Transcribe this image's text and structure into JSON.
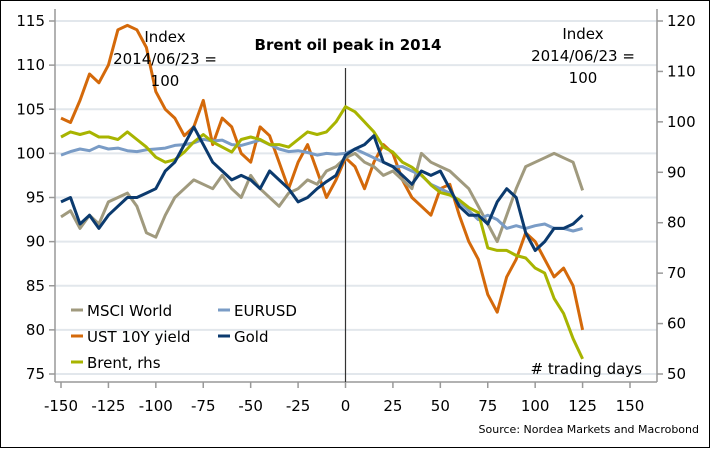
{
  "chart_data": {
    "type": "line",
    "title": "Brent oil peak in 2014",
    "annotation_left": [
      "Index",
      "2014/06/23 =",
      "100"
    ],
    "annotation_right": [
      "Index",
      "2014/06/23 =",
      "100"
    ],
    "xlabel": "# trading days",
    "source": "Source: Nordea Markets and Macrobond",
    "grid": true,
    "x_axis": {
      "range": [
        -155,
        165
      ],
      "ticks": [
        -150,
        -125,
        -100,
        -75,
        -50,
        -25,
        0,
        25,
        50,
        75,
        100,
        125,
        150
      ]
    },
    "y_left": {
      "range": [
        74,
        116
      ],
      "ticks": [
        75,
        80,
        85,
        90,
        95,
        100,
        105,
        110,
        115
      ]
    },
    "y_right": {
      "range": [
        50,
        120
      ],
      "ticks": [
        50,
        60,
        70,
        80,
        90,
        100,
        110,
        120
      ]
    },
    "vline_at": 0,
    "legend_position": "bottom-left",
    "x": [
      -150,
      -145,
      -140,
      -135,
      -130,
      -125,
      -120,
      -115,
      -110,
      -105,
      -100,
      -95,
      -90,
      -85,
      -80,
      -75,
      -70,
      -65,
      -60,
      -55,
      -50,
      -45,
      -40,
      -35,
      -30,
      -25,
      -20,
      -15,
      -10,
      -5,
      0,
      5,
      10,
      15,
      20,
      25,
      30,
      35,
      40,
      45,
      50,
      55,
      60,
      65,
      70,
      75,
      80,
      85,
      90,
      95,
      100,
      105,
      110,
      115,
      120,
      125
    ],
    "series": [
      {
        "name": "MSCI World",
        "axis": "left",
        "color": "#A09A7E",
        "values": [
          92.8,
          93.5,
          91.5,
          93,
          92,
          94.5,
          95,
          95.5,
          94,
          91,
          90.5,
          93,
          95,
          96,
          97,
          96.5,
          96,
          97.5,
          96,
          95,
          97.5,
          96,
          95,
          94,
          95.5,
          96,
          97,
          96.5,
          98,
          98.5,
          99.5,
          100,
          99,
          98.5,
          97.5,
          98,
          97,
          96,
          100,
          99,
          98.5,
          98,
          97,
          96,
          94,
          92,
          90,
          93,
          96,
          98.5,
          99,
          99.5,
          100,
          99.5,
          99,
          95.8
        ]
      },
      {
        "name": "EURUSD",
        "axis": "left",
        "color": "#7A9CC6",
        "values": [
          99.8,
          100.2,
          100.5,
          100.3,
          100.8,
          100.5,
          100.6,
          100.3,
          100.2,
          100.4,
          100.5,
          100.6,
          100.9,
          101,
          101.2,
          101.6,
          101.4,
          101.5,
          101,
          100.9,
          101.2,
          101.5,
          101,
          100.5,
          100.2,
          100.3,
          100.1,
          99.8,
          100,
          99.9,
          100,
          100.5,
          100,
          99.5,
          99,
          98.5,
          98.5,
          98,
          97.5,
          96.5,
          96,
          95.5,
          94.5,
          93.5,
          92.5,
          93,
          92.5,
          91.5,
          91.8,
          91.5,
          91.8,
          92,
          91.5,
          91.5,
          91.2,
          91.5
        ]
      },
      {
        "name": "UST 10Y yield",
        "axis": "left",
        "color": "#D4690A",
        "values": [
          104,
          103.5,
          106,
          109,
          108,
          110,
          114,
          114.5,
          114,
          112,
          107,
          105,
          104,
          102,
          103,
          106,
          101,
          104,
          103,
          100,
          99,
          103,
          102,
          99,
          96,
          99,
          101,
          98,
          95,
          97,
          99.5,
          98.5,
          96,
          99,
          101,
          100,
          97,
          95,
          94,
          93,
          96,
          96.5,
          93,
          90,
          88,
          84,
          82,
          86,
          88,
          91,
          90,
          88,
          86,
          87,
          85,
          80
        ]
      },
      {
        "name": "Gold",
        "axis": "left",
        "color": "#0B3A6E",
        "values": [
          94.5,
          95,
          92,
          93,
          91.5,
          93,
          94,
          95,
          95,
          95.5,
          96,
          98,
          99,
          101,
          103,
          101,
          99,
          98,
          97,
          97.5,
          97,
          96,
          98,
          97,
          96,
          94.5,
          95,
          96,
          96.8,
          97.5,
          99.8,
          100.5,
          101,
          102,
          99,
          98.5,
          97.5,
          96.5,
          98,
          97.5,
          98,
          96,
          94,
          93,
          93,
          92,
          94.5,
          96,
          95,
          91,
          89,
          90,
          91.5,
          91.5,
          92,
          93
        ]
      },
      {
        "name": "Brent, rhs",
        "axis": "right",
        "color": "#A8B400",
        "values": [
          97,
          98,
          97.5,
          98,
          97,
          97,
          96.5,
          98,
          96.5,
          95,
          93,
          92,
          92.5,
          94,
          96,
          97.5,
          96,
          95,
          94,
          96.5,
          97,
          96.5,
          95.5,
          95.5,
          95,
          96.5,
          98,
          97.5,
          98,
          100,
          103,
          102,
          100,
          98,
          95,
          94,
          92,
          91,
          89.5,
          87.5,
          86,
          85.5,
          84.5,
          83,
          82,
          75,
          74.5,
          74.5,
          73.5,
          73,
          71,
          70,
          65,
          62,
          57,
          53
        ]
      }
    ]
  }
}
